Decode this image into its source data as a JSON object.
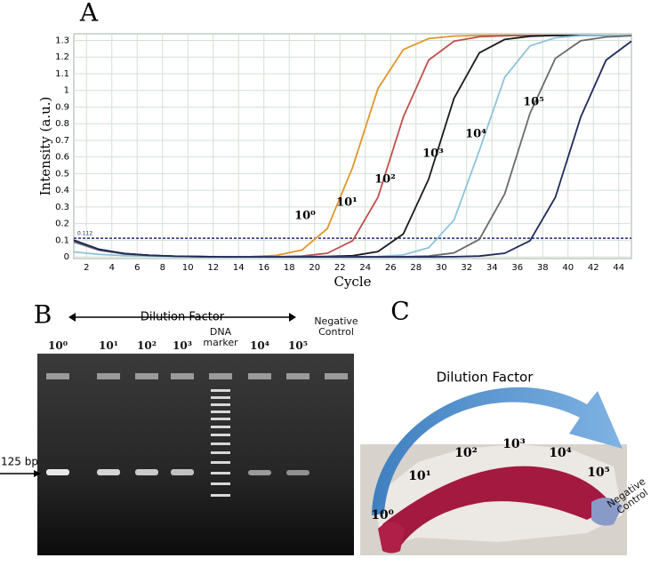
{
  "chart_data": {
    "type": "line",
    "title": "A",
    "xlabel": "Cycle",
    "ylabel": "Intensity (a.u.)",
    "x": [
      1,
      3,
      5,
      7,
      9,
      11,
      13,
      15,
      17,
      19,
      21,
      23,
      25,
      27,
      29,
      31,
      33,
      35,
      37,
      39,
      41,
      43,
      45
    ],
    "xlim": [
      1,
      45
    ],
    "xticks": [
      2,
      4,
      6,
      8,
      10,
      12,
      14,
      16,
      18,
      20,
      22,
      24,
      26,
      28,
      30,
      32,
      34,
      36,
      38,
      40,
      42,
      44
    ],
    "ylim": [
      -0.01,
      1.34
    ],
    "yticks": [
      0,
      0.1,
      0.2,
      0.3,
      0.4,
      0.5,
      0.6,
      0.7,
      0.8,
      0.9,
      1,
      1.1,
      1.2,
      1.3
    ],
    "grid": true,
    "threshold": {
      "value": 0.112,
      "label": "0.112"
    },
    "series": [
      {
        "name": "10⁰",
        "color": "#e0962a",
        "values": [
          0.1,
          0.045,
          0.02,
          0.009,
          0.004,
          0.002,
          0.001,
          0.002,
          0.009,
          0.041,
          0.17,
          0.538,
          1.011,
          1.245,
          1.311,
          1.326,
          1.33,
          1.33,
          1.33,
          1.33,
          1.33,
          1.33,
          1.33
        ]
      },
      {
        "name": "10¹",
        "color": "#c0504d",
        "values": [
          0.1,
          0.045,
          0.02,
          0.009,
          0.004,
          0.002,
          0,
          0,
          0.001,
          0.005,
          0.022,
          0.097,
          0.358,
          0.84,
          1.182,
          1.295,
          1.322,
          1.328,
          1.33,
          1.33,
          1.33,
          1.33,
          1.33
        ]
      },
      {
        "name": "10²",
        "color": "#1a1a1a",
        "values": [
          0.1,
          0.045,
          0.02,
          0.009,
          0.004,
          0.002,
          0,
          0,
          0,
          0.001,
          0.003,
          0.007,
          0.032,
          0.138,
          0.467,
          0.952,
          1.226,
          1.306,
          1.325,
          1.33,
          1.33,
          1.33,
          1.33
        ]
      },
      {
        "name": "10³",
        "color": "#8ec3dc",
        "values": [
          0.03,
          0.015,
          0.008,
          0.004,
          0.002,
          0.001,
          0,
          0,
          0,
          0,
          0,
          0.001,
          0.003,
          0.012,
          0.055,
          0.221,
          0.639,
          1.079,
          1.267,
          1.316,
          1.328,
          1.33,
          1.33
        ]
      },
      {
        "name": "10⁴",
        "color": "#6a6a6a",
        "values": [
          0.09,
          0.04,
          0.018,
          0.008,
          0.004,
          0.002,
          0,
          0,
          0,
          0,
          0,
          0,
          0,
          0.001,
          0.005,
          0.024,
          0.105,
          0.378,
          0.863,
          1.192,
          1.298,
          1.321,
          1.328
        ]
      },
      {
        "name": "10⁵",
        "color": "#1f2a5c",
        "values": [
          0.1,
          0.045,
          0.02,
          0.009,
          0.004,
          0.002,
          0,
          0,
          0,
          0,
          0,
          0,
          0,
          0,
          0,
          0.001,
          0.005,
          0.022,
          0.097,
          0.358,
          0.84,
          1.182,
          1.295
        ]
      }
    ]
  },
  "panel_b": {
    "label": "B",
    "header": "Dilution Factor",
    "lanes": [
      "10⁰",
      "10¹",
      "10²",
      "10³",
      "DNA marker",
      "10⁴",
      "10⁵",
      "Negative Control"
    ],
    "band_label": "125 bp"
  },
  "panel_c": {
    "label": "C",
    "header": "Dilution Factor",
    "tubes": [
      "10⁰",
      "10¹",
      "10²",
      "10³",
      "10⁴",
      "10⁵",
      "Negative Control"
    ]
  }
}
